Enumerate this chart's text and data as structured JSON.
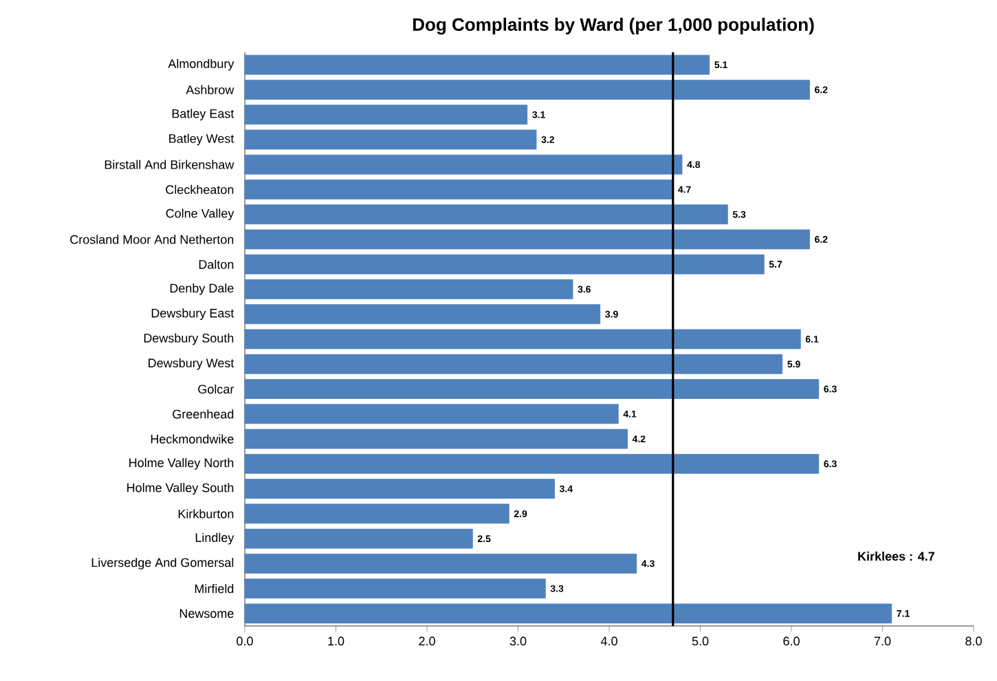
{
  "chart_data": {
    "type": "bar",
    "orientation": "horizontal",
    "title": "Dog Complaints by Ward (per 1,000 population)",
    "categories": [
      "Almondbury",
      "Ashbrow",
      "Batley East",
      "Batley West",
      "Birstall And Birkenshaw",
      "Cleckheaton",
      "Colne Valley",
      "Crosland Moor And Netherton",
      "Dalton",
      "Denby Dale",
      "Dewsbury East",
      "Dewsbury South",
      "Dewsbury West",
      "Golcar",
      "Greenhead",
      "Heckmondwike",
      "Holme Valley North",
      "Holme Valley South",
      "Kirkburton",
      "Lindley",
      "Liversedge And Gomersal",
      "Mirfield",
      "Newsome"
    ],
    "values": [
      5.1,
      6.2,
      3.1,
      3.2,
      4.8,
      4.7,
      5.3,
      6.2,
      5.7,
      3.6,
      3.9,
      6.1,
      5.9,
      6.3,
      4.1,
      4.2,
      6.3,
      3.4,
      2.9,
      2.5,
      4.3,
      3.3,
      7.1
    ],
    "color": "#4f81bd",
    "data_labels": true,
    "xlim": [
      0,
      8
    ],
    "xticks": [
      {
        "value": 0,
        "label": "0.0"
      },
      {
        "value": 1,
        "label": "1.0"
      },
      {
        "value": 2,
        "label": "2.0"
      },
      {
        "value": 3,
        "label": "3.0"
      },
      {
        "value": 4,
        "label": "4.0"
      },
      {
        "value": 5,
        "label": "5.0"
      },
      {
        "value": 6,
        "label": "6.0"
      },
      {
        "value": 7,
        "label": "7.0"
      },
      {
        "value": 8,
        "label": "8.0"
      }
    ],
    "ref_lines": [
      {
        "axis": "x",
        "value": 4.7,
        "label": "Kirklees : 4.7",
        "color": "#000000"
      }
    ],
    "grid": false
  }
}
